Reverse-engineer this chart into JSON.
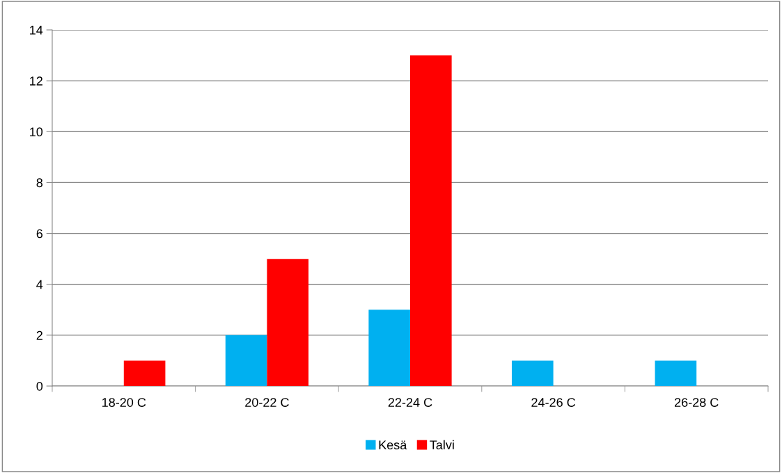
{
  "chart_data": {
    "type": "bar",
    "categories": [
      "18-20 C",
      "20-22 C",
      "22-24 C",
      "24-26 C",
      "26-28 C"
    ],
    "series": [
      {
        "name": "Kesä",
        "color": "#00b0f0",
        "values": [
          0,
          2,
          3,
          1,
          1
        ]
      },
      {
        "name": "Talvi",
        "color": "#ff0000",
        "values": [
          1,
          5,
          13,
          0,
          0
        ]
      }
    ],
    "ylim": [
      0,
      14
    ],
    "yticks": [
      0,
      2,
      4,
      6,
      8,
      10,
      12,
      14
    ],
    "grid": "y",
    "legend": "bottom"
  }
}
